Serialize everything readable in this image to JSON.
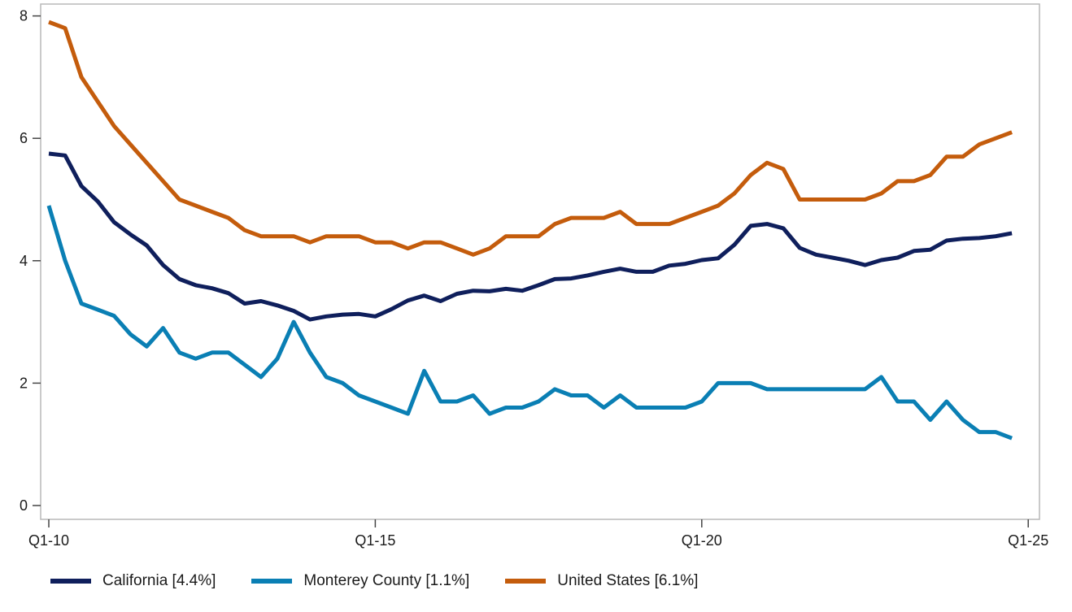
{
  "chart_data": {
    "type": "line",
    "title": "",
    "xlabel": "",
    "ylabel": "",
    "x_tick_labels": [
      "Q1-10",
      "Q1-15",
      "Q1-20",
      "Q1-25"
    ],
    "y_tick_labels": [
      "0",
      "2",
      "4",
      "6",
      "8"
    ],
    "ylim": [
      0,
      8
    ],
    "grid": false,
    "legend_position": "bottom",
    "x_quarters": [
      "Q1-10",
      "Q2-10",
      "Q3-10",
      "Q4-10",
      "Q1-11",
      "Q2-11",
      "Q3-11",
      "Q4-11",
      "Q1-12",
      "Q2-12",
      "Q3-12",
      "Q4-12",
      "Q1-13",
      "Q2-13",
      "Q3-13",
      "Q4-13",
      "Q1-14",
      "Q2-14",
      "Q3-14",
      "Q4-14",
      "Q1-15",
      "Q2-15",
      "Q3-15",
      "Q4-15",
      "Q1-16",
      "Q2-16",
      "Q3-16",
      "Q4-16",
      "Q1-17",
      "Q2-17",
      "Q3-17",
      "Q4-17",
      "Q1-18",
      "Q2-18",
      "Q3-18",
      "Q4-18",
      "Q1-19",
      "Q2-19",
      "Q3-19",
      "Q4-19",
      "Q1-20",
      "Q2-20",
      "Q3-20",
      "Q4-20",
      "Q1-21",
      "Q2-21",
      "Q3-21",
      "Q4-21",
      "Q1-22",
      "Q2-22",
      "Q3-22",
      "Q4-22",
      "Q1-23",
      "Q2-23",
      "Q3-23",
      "Q4-23",
      "Q1-24",
      "Q2-24",
      "Q3-24",
      "Q4-24"
    ],
    "series": [
      {
        "name": "California [4.4%]",
        "color": "#0f1f5c",
        "values": [
          5.75,
          5.72,
          5.22,
          4.97,
          4.63,
          4.43,
          4.25,
          3.93,
          3.7,
          3.6,
          3.55,
          3.47,
          3.3,
          3.34,
          3.27,
          3.18,
          3.04,
          3.09,
          3.12,
          3.13,
          3.09,
          3.21,
          3.35,
          3.43,
          3.34,
          3.46,
          3.51,
          3.5,
          3.54,
          3.51,
          3.6,
          3.7,
          3.71,
          3.76,
          3.82,
          3.87,
          3.82,
          3.82,
          3.92,
          3.95,
          4.01,
          4.04,
          4.26,
          4.57,
          4.6,
          4.53,
          4.21,
          4.1,
          4.05,
          4.0,
          3.93,
          4.01,
          4.05,
          4.16,
          4.18,
          4.33,
          4.36,
          4.37,
          4.4,
          4.45
        ]
      },
      {
        "name": "Monterey County [1.1%]",
        "color": "#0a7fb4",
        "values": [
          4.9,
          4.0,
          3.3,
          3.2,
          3.1,
          2.8,
          2.6,
          2.9,
          2.5,
          2.4,
          2.5,
          2.5,
          2.3,
          2.1,
          2.4,
          3.0,
          2.5,
          2.1,
          2.0,
          1.8,
          1.7,
          1.6,
          1.5,
          2.2,
          1.7,
          1.7,
          1.8,
          1.5,
          1.6,
          1.6,
          1.7,
          1.9,
          1.8,
          1.8,
          1.6,
          1.8,
          1.6,
          1.6,
          1.6,
          1.6,
          1.7,
          2.0,
          2.0,
          2.0,
          1.9,
          1.9,
          1.9,
          1.9,
          1.9,
          1.9,
          1.9,
          2.1,
          1.7,
          1.7,
          1.4,
          1.7,
          1.4,
          1.2,
          1.2,
          1.1
        ]
      },
      {
        "name": "United States [6.1%]",
        "color": "#c45c0c",
        "values": [
          7.9,
          7.8,
          7.0,
          6.6,
          6.2,
          5.9,
          5.6,
          5.3,
          5.0,
          4.9,
          4.8,
          4.7,
          4.5,
          4.4,
          4.4,
          4.4,
          4.3,
          4.4,
          4.4,
          4.4,
          4.3,
          4.3,
          4.2,
          4.3,
          4.3,
          4.2,
          4.1,
          4.2,
          4.4,
          4.4,
          4.4,
          4.6,
          4.7,
          4.7,
          4.7,
          4.8,
          4.6,
          4.6,
          4.6,
          4.7,
          4.8,
          4.9,
          5.1,
          5.4,
          5.6,
          5.5,
          5.0,
          5.0,
          5.0,
          5.0,
          5.0,
          5.1,
          5.3,
          5.3,
          5.4,
          5.7,
          5.7,
          5.9,
          6.0,
          6.1
        ]
      }
    ]
  }
}
